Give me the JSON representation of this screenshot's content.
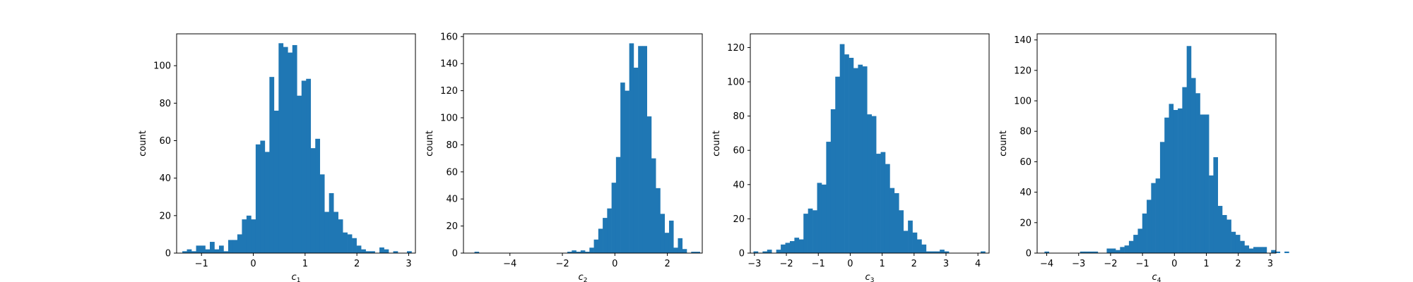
{
  "figure": {
    "bar_color": "#1f77b4",
    "background": "#ffffff"
  },
  "chart_data": [
    {
      "type": "bar",
      "xlabel": "c",
      "xlabel_sub": "1",
      "ylabel": "count",
      "xlim": [
        -1.48,
        3.13
      ],
      "ylim": [
        0,
        117
      ],
      "xticks": [
        -1,
        0,
        1,
        2,
        3
      ],
      "yticks": [
        0,
        20,
        40,
        60,
        80,
        100
      ],
      "bin_start": -1.37,
      "bin_width": 0.0885,
      "values": [
        1,
        2,
        1,
        4,
        4,
        2,
        6,
        2,
        4,
        1,
        7,
        7,
        10,
        18,
        20,
        18,
        58,
        60,
        54,
        94,
        76,
        112,
        110,
        107,
        111,
        84,
        92,
        93,
        56,
        61,
        42,
        22,
        32,
        22,
        18,
        11,
        10,
        8,
        4,
        2,
        1,
        1,
        0,
        3,
        2,
        0,
        1,
        0,
        0,
        1
      ]
    },
    {
      "type": "bar",
      "xlabel": "c",
      "xlabel_sub": "2",
      "ylabel": "count",
      "xlim": [
        -5.77,
        3.33
      ],
      "ylim": [
        0,
        162
      ],
      "xticks": [
        -4,
        -2,
        0,
        2
      ],
      "yticks": [
        0,
        20,
        40,
        60,
        80,
        100,
        120,
        140,
        160
      ],
      "bin_start": -5.35,
      "bin_width": 0.1685,
      "values": [
        1,
        0,
        0,
        0,
        0,
        0,
        0,
        0,
        0,
        0,
        0,
        0,
        0,
        0,
        0,
        0,
        0,
        0,
        0,
        0,
        0,
        1,
        2,
        1,
        2,
        1,
        4,
        10,
        18,
        26,
        33,
        52,
        71,
        126,
        120,
        155,
        137,
        153,
        153,
        101,
        70,
        48,
        29,
        15,
        24,
        4,
        11,
        3,
        0,
        1,
        1
      ]
    },
    {
      "type": "bar",
      "xlabel": "c",
      "xlabel_sub": "3",
      "ylabel": "count",
      "xlim": [
        -3.13,
        4.35
      ],
      "ylim": [
        0,
        128
      ],
      "xticks": [
        -3,
        -2,
        -1,
        0,
        1,
        2,
        3,
        4
      ],
      "yticks": [
        0,
        20,
        40,
        60,
        80,
        100,
        120
      ],
      "bin_start": -3.03,
      "bin_width": 0.1423,
      "values": [
        1,
        0,
        1,
        2,
        0,
        2,
        5,
        6,
        7,
        9,
        8,
        23,
        26,
        25,
        41,
        40,
        65,
        84,
        103,
        122,
        116,
        114,
        108,
        110,
        109,
        81,
        80,
        58,
        59,
        52,
        38,
        35,
        25,
        13,
        19,
        12,
        8,
        5,
        1,
        1,
        1,
        2,
        1,
        0,
        0,
        0,
        0,
        0,
        0,
        0,
        1
      ]
    },
    {
      "type": "bar",
      "xlabel": "c",
      "xlabel_sub": "4",
      "ylabel": "count",
      "xlim": [
        -4.3,
        3.18
      ],
      "ylim": [
        0,
        144
      ],
      "xticks": [
        -4,
        -3,
        -2,
        -1,
        0,
        1,
        2,
        3
      ],
      "yticks": [
        0,
        20,
        40,
        60,
        80,
        100,
        120,
        140
      ],
      "bin_start": -4.07,
      "bin_width": 0.1392,
      "values": [
        1,
        0,
        0,
        0,
        0,
        0,
        0,
        0,
        1,
        1,
        1,
        1,
        0,
        0,
        3,
        3,
        2,
        4,
        5,
        8,
        12,
        16,
        26,
        35,
        46,
        49,
        73,
        89,
        98,
        94,
        95,
        109,
        136,
        115,
        105,
        91,
        91,
        51,
        63,
        31,
        25,
        22,
        14,
        12,
        8,
        5,
        3,
        4,
        4,
        4,
        0,
        2,
        1,
        0,
        1
      ]
    }
  ]
}
